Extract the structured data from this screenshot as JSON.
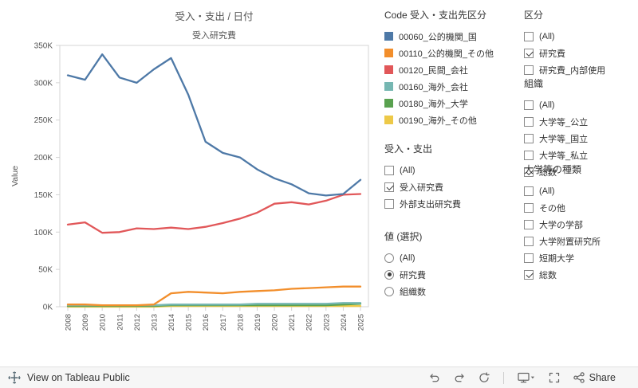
{
  "chart_data": {
    "type": "line",
    "title": "受入・支出 / 日付",
    "pane_label": "受入研究費",
    "ylabel": "Value",
    "y_unit": "K (thousands)",
    "ylim": [
      0,
      350
    ],
    "yticks": [
      0,
      50,
      100,
      150,
      200,
      250,
      300,
      350
    ],
    "ytick_labels": [
      "0K",
      "50K",
      "100K",
      "150K",
      "200K",
      "250K",
      "300K",
      "350K"
    ],
    "x": [
      2008,
      2009,
      2010,
      2011,
      2012,
      2013,
      2014,
      2015,
      2016,
      2017,
      2018,
      2019,
      2020,
      2021,
      2022,
      2023,
      2024,
      2025
    ],
    "xtick_labels": [
      "2008",
      "2009",
      "2010",
      "2011",
      "2012",
      "2013",
      "2014",
      "2015",
      "2016",
      "2017",
      "2018",
      "2019",
      "2020",
      "2021",
      "2022",
      "2023",
      "2024",
      "2025"
    ],
    "grid": false,
    "legend_position": "right",
    "series": [
      {
        "name": "00060_公的機関_国",
        "color": "#4e79a7",
        "values": [
          310,
          304,
          338,
          307,
          300,
          318,
          333,
          284,
          221,
          206,
          200,
          184,
          172,
          164,
          152,
          149,
          151,
          170
        ]
      },
      {
        "name": "00110_公的機関_その他",
        "color": "#f28e2b",
        "values": [
          3,
          3,
          2,
          2,
          2,
          3,
          18,
          20,
          19,
          18,
          20,
          21,
          22,
          24,
          25,
          26,
          27,
          27
        ]
      },
      {
        "name": "00120_民間_会社",
        "color": "#e15759",
        "values": [
          110,
          113,
          99,
          100,
          105,
          104,
          106,
          104,
          107,
          112,
          118,
          126,
          138,
          140,
          137,
          142,
          150,
          151
        ]
      },
      {
        "name": "00160_海外_会社",
        "color": "#76b7b2",
        "values": [
          2,
          2,
          2,
          2,
          2,
          2,
          3,
          3,
          3,
          3,
          3,
          4,
          4,
          4,
          4,
          4,
          5,
          5
        ]
      },
      {
        "name": "00180_海外_大学",
        "color": "#59a14f",
        "values": [
          1,
          1,
          1,
          1,
          1,
          1,
          2,
          2,
          2,
          2,
          2,
          2,
          2,
          2,
          2,
          2,
          3,
          4
        ]
      },
      {
        "name": "00190_海外_その他",
        "color": "#edc948",
        "values": [
          0,
          0,
          0,
          0,
          0,
          0,
          1,
          1,
          1,
          1,
          1,
          1,
          1,
          1,
          1,
          1,
          1,
          1
        ]
      }
    ]
  },
  "legend": {
    "title": "Code 受入・支出先区分",
    "items": [
      {
        "label": "00060_公的機関_国",
        "color": "#4e79a7"
      },
      {
        "label": "00110_公的機関_その他",
        "color": "#f28e2b"
      },
      {
        "label": "00120_民間_会社",
        "color": "#e15759"
      },
      {
        "label": "00160_海外_会社",
        "color": "#76b7b2"
      },
      {
        "label": "00180_海外_大学",
        "color": "#59a14f"
      },
      {
        "label": "00190_海外_その他",
        "color": "#edc948"
      }
    ]
  },
  "filters": [
    {
      "title": "受入・支出",
      "type": "checkbox",
      "items": [
        {
          "label": "(All)",
          "checked": false
        },
        {
          "label": "受入研究費",
          "checked": true
        },
        {
          "label": "外部支出研究費",
          "checked": false
        }
      ]
    },
    {
      "title": "値 (選択)",
      "type": "radio",
      "items": [
        {
          "label": "(All)",
          "checked": false
        },
        {
          "label": "研究費",
          "checked": true
        },
        {
          "label": "組織数",
          "checked": false
        }
      ]
    },
    {
      "title": "区分",
      "type": "checkbox",
      "items": [
        {
          "label": "(All)",
          "checked": false
        },
        {
          "label": "研究費",
          "checked": true
        },
        {
          "label": "研究費_内部使用",
          "checked": false
        }
      ]
    },
    {
      "title": "組織",
      "type": "checkbox",
      "items": [
        {
          "label": "(All)",
          "checked": false
        },
        {
          "label": "大学等_公立",
          "checked": false
        },
        {
          "label": "大学等_国立",
          "checked": false
        },
        {
          "label": "大学等_私立",
          "checked": false
        },
        {
          "label": "総数",
          "checked": true
        }
      ]
    },
    {
      "title": "大学等の種類",
      "type": "checkbox",
      "items": [
        {
          "label": "(All)",
          "checked": false
        },
        {
          "label": "その他",
          "checked": false
        },
        {
          "label": "大学の学部",
          "checked": false
        },
        {
          "label": "大学附置研究所",
          "checked": false
        },
        {
          "label": "短期大学",
          "checked": false
        },
        {
          "label": "総数",
          "checked": true
        }
      ]
    }
  ],
  "toolbar": {
    "view_on_label": "View on Tableau Public",
    "share_label": "Share",
    "icons": [
      "undo-icon",
      "redo-icon",
      "replay-icon",
      "device-preview-icon",
      "fullscreen-icon",
      "share-icon"
    ]
  }
}
